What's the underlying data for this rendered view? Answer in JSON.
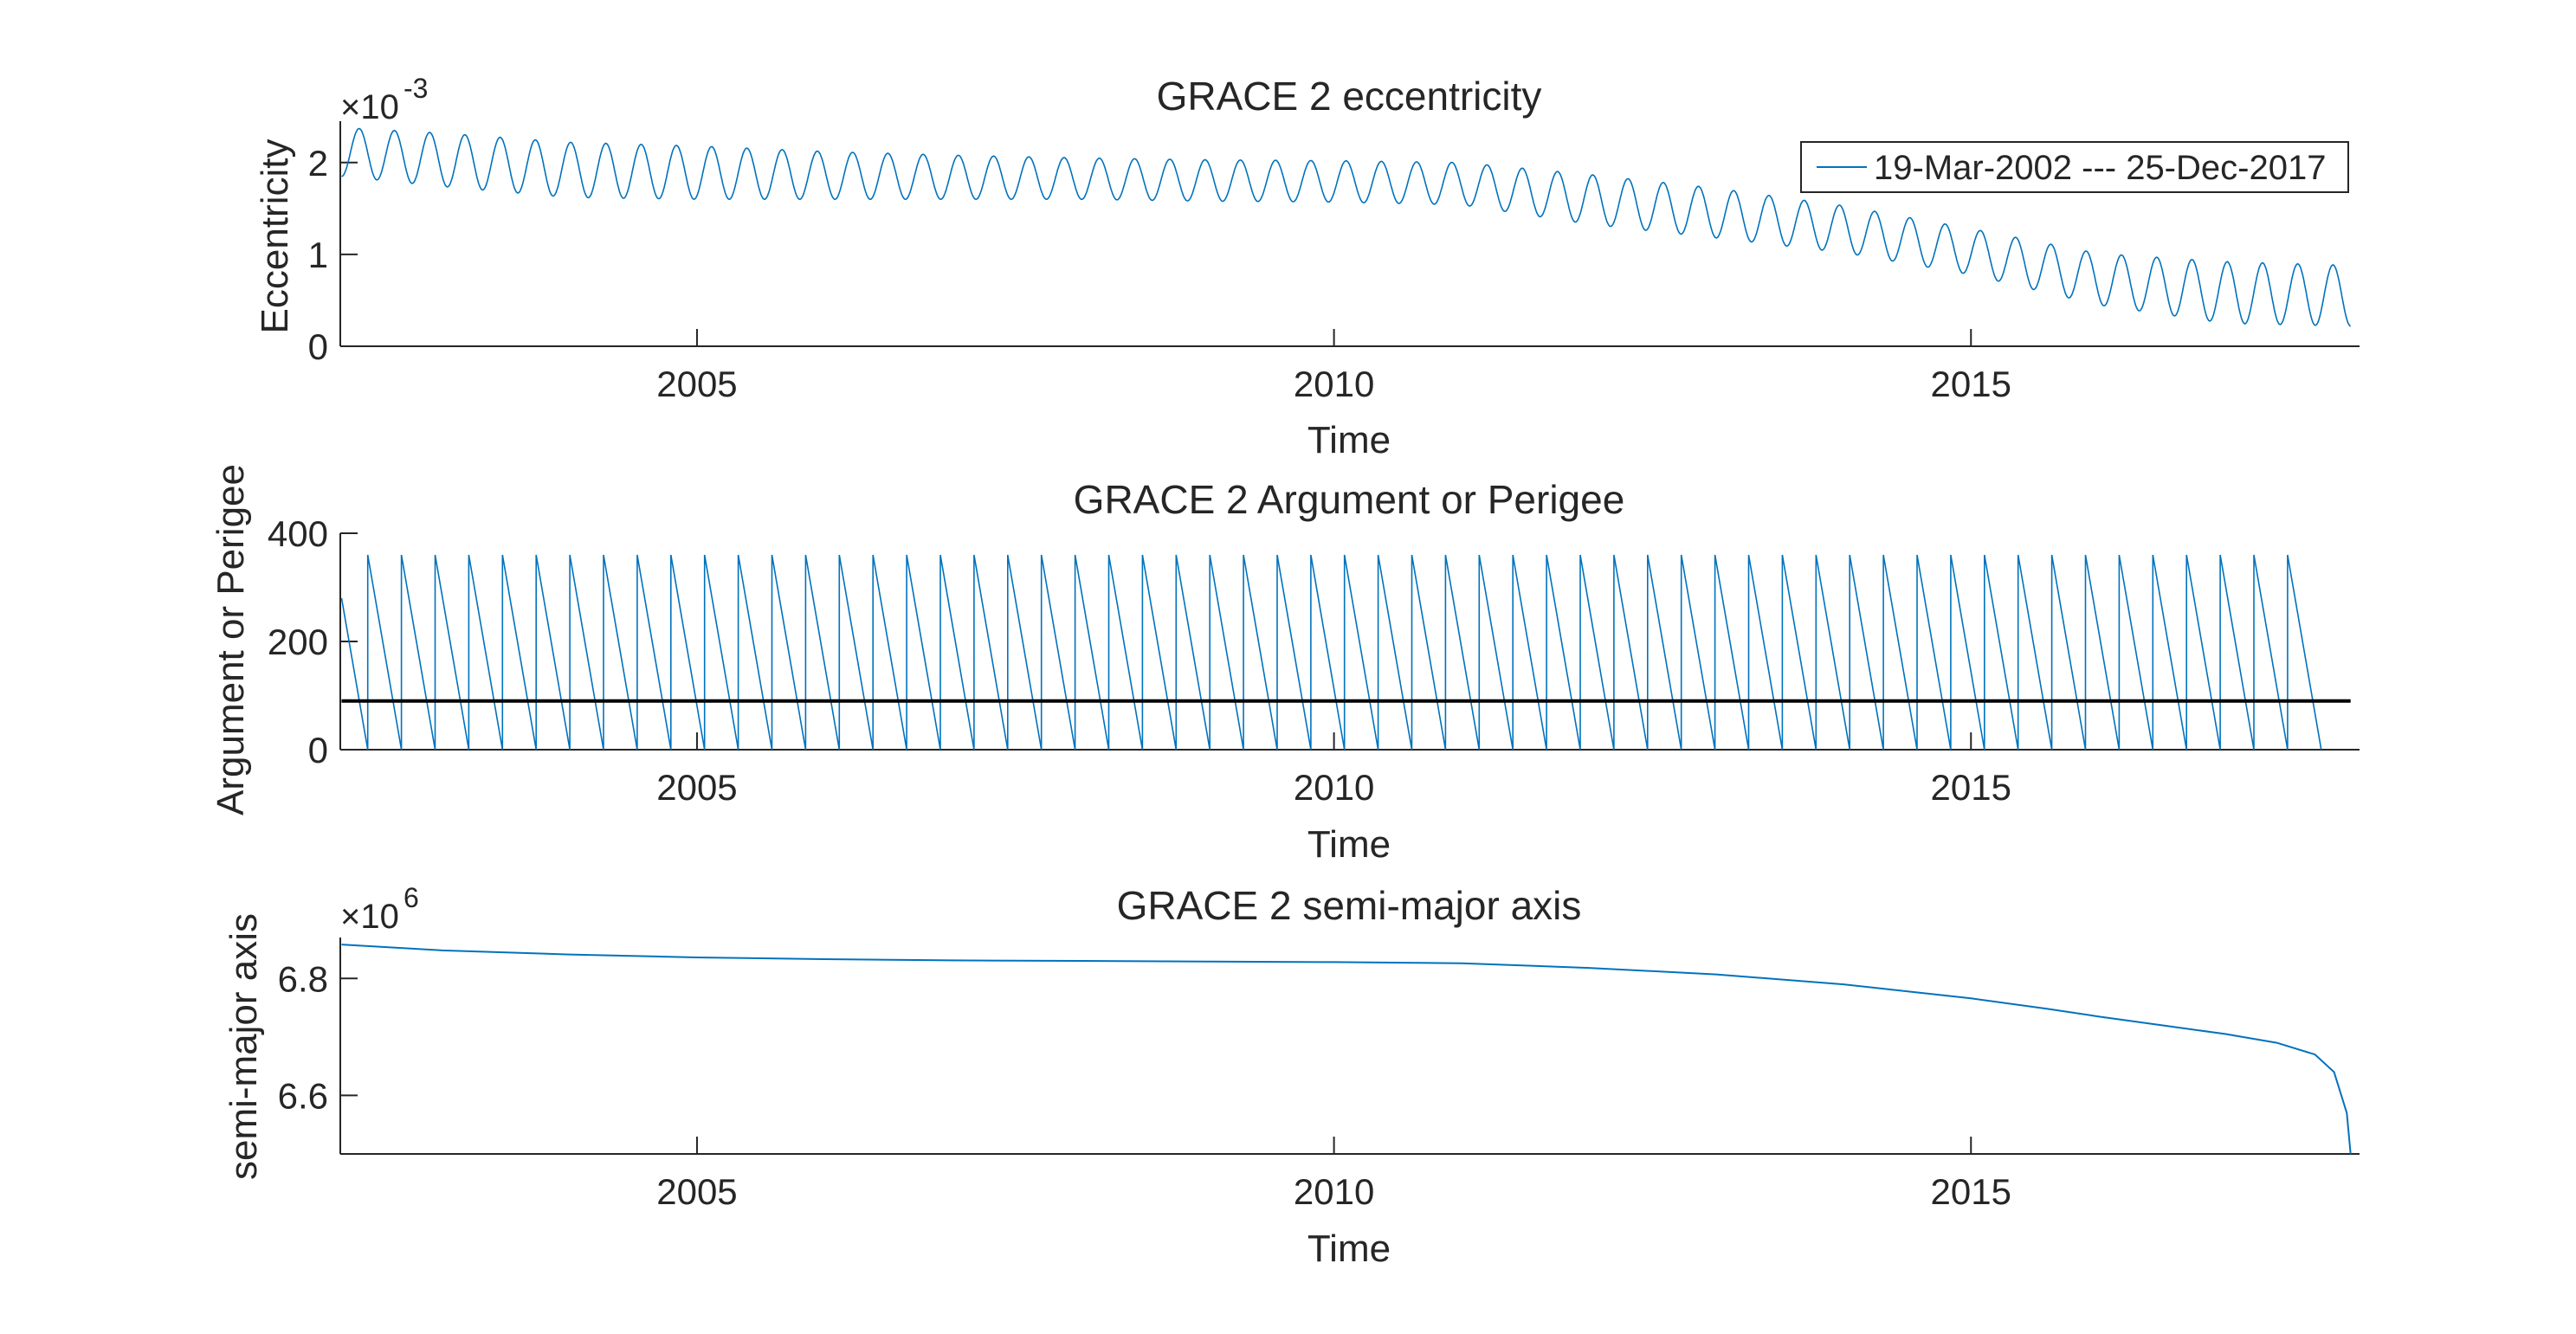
{
  "chart_data": [
    {
      "type": "line",
      "title": "GRACE 2 eccentricity",
      "xlabel": "Time",
      "ylabel": "Eccentricity",
      "y_exponent_base": "×10",
      "y_exponent_power": "-3",
      "xlim": [
        2002.2,
        2018.05
      ],
      "ylim": [
        0,
        2.45
      ],
      "xticks": [
        2005,
        2010,
        2015
      ],
      "xtick_labels": [
        "2005",
        "2010",
        "2015"
      ],
      "yticks": [
        0,
        1,
        2
      ],
      "ytick_labels": [
        "0",
        "1",
        "2"
      ],
      "grid": false,
      "legend": {
        "placement": "top-right",
        "entries": [
          "19-Mar-2002 --- 25-Dec-2017"
        ]
      },
      "color": "#0072BD",
      "series": [
        {
          "name": "19-Mar-2002 --- 25-Dec-2017",
          "x": [
            2002.21,
            2003,
            2004,
            2005,
            2006,
            2007,
            2008,
            2009,
            2010,
            2011,
            2012,
            2013,
            2014,
            2015,
            2016,
            2017,
            2017.98
          ],
          "y_max": [
            2.38,
            2.32,
            2.22,
            2.18,
            2.12,
            2.08,
            2.05,
            2.03,
            2.02,
            2.0,
            1.87,
            1.72,
            1.53,
            1.28,
            1.01,
            0.92,
            0.88
          ],
          "y_min": [
            1.85,
            1.74,
            1.62,
            1.6,
            1.6,
            1.6,
            1.6,
            1.58,
            1.57,
            1.54,
            1.33,
            1.18,
            1.02,
            0.78,
            0.45,
            0.25,
            0.22
          ],
          "oscillation_cycles": 57
        }
      ]
    },
    {
      "type": "line",
      "title": "GRACE 2 Argument or Perigee",
      "xlabel": "Time",
      "ylabel": "Argument or Perigee",
      "xlim": [
        2002.2,
        2018.05
      ],
      "ylim": [
        0,
        400
      ],
      "xticks": [
        2005,
        2010,
        2015
      ],
      "xtick_labels": [
        "2005",
        "2010",
        "2015"
      ],
      "yticks": [
        0,
        200,
        400
      ],
      "ytick_labels": [
        "0",
        "200",
        "400"
      ],
      "grid": false,
      "color": "#0072BD",
      "series": [
        {
          "x_start": 2002.21,
          "x_end": 2017.98,
          "start_value": 280,
          "wrap_cycles": 60,
          "y_top": 360,
          "y_bottom": 0
        }
      ],
      "reference_line": {
        "y": 90,
        "color": "#000000"
      }
    },
    {
      "type": "line",
      "title": "GRACE 2 semi-major axis",
      "xlabel": "Time",
      "ylabel": "semi-major axis",
      "y_exponent_base": "×10",
      "y_exponent_power": "6",
      "xlim": [
        2002.2,
        2018.05
      ],
      "ylim": [
        6.5,
        6.87
      ],
      "xticks": [
        2005,
        2010,
        2015
      ],
      "xtick_labels": [
        "2005",
        "2010",
        "2015"
      ],
      "yticks": [
        6.6,
        6.8
      ],
      "ytick_labels": [
        "6.6",
        "6.8"
      ],
      "grid": false,
      "color": "#0072BD",
      "series": [
        {
          "x": [
            2002.21,
            2003,
            2004,
            2005,
            2006,
            2007,
            2008,
            2009,
            2010,
            2011,
            2012,
            2013,
            2014,
            2015,
            2015.6,
            2016,
            2016.5,
            2017,
            2017.4,
            2017.7,
            2017.85,
            2017.95,
            2017.98
          ],
          "y": [
            6.858,
            6.848,
            6.841,
            6.836,
            6.833,
            6.831,
            6.83,
            6.829,
            6.828,
            6.826,
            6.818,
            6.807,
            6.79,
            6.766,
            6.748,
            6.735,
            6.72,
            6.705,
            6.69,
            6.67,
            6.64,
            6.57,
            6.5
          ]
        }
      ]
    }
  ]
}
